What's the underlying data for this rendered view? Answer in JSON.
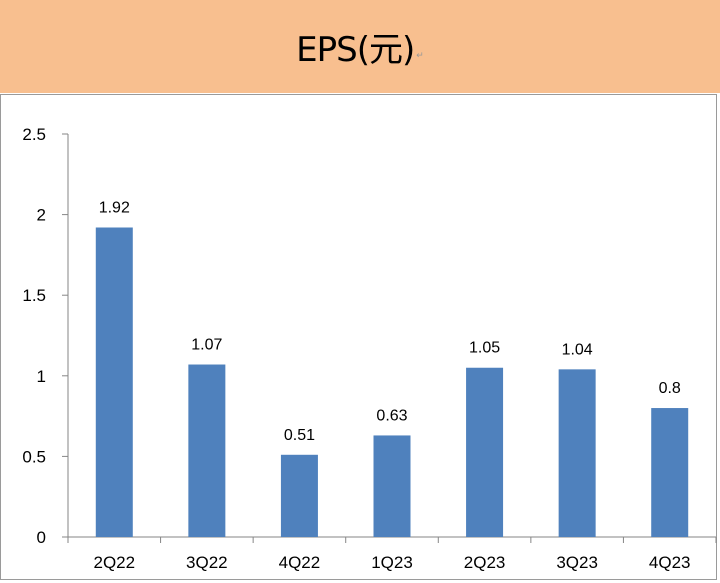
{
  "chart_data": {
    "type": "bar",
    "title": "EPS(元)",
    "title_mark": "↵",
    "categories": [
      "2Q22",
      "3Q22",
      "4Q22",
      "1Q23",
      "2Q23",
      "3Q23",
      "4Q23"
    ],
    "values": [
      1.92,
      1.07,
      0.51,
      0.63,
      1.05,
      1.04,
      0.8
    ],
    "data_labels": [
      "1.92",
      "1.07",
      "0.51",
      "0.63",
      "1.05",
      "1.04",
      "0.8"
    ],
    "yticks": [
      "0",
      "0.5",
      "1",
      "1.5",
      "2",
      "2.5"
    ],
    "ylim": [
      0,
      2.5
    ],
    "xlabel": "",
    "ylabel": "",
    "grid": false,
    "colors": {
      "bar": "#4F81BD",
      "header": "#F8BF8F"
    }
  }
}
